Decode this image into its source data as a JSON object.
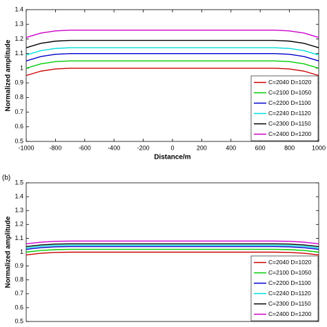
{
  "chart_data": [
    {
      "type": "line",
      "y_label": "Normalized amplitude",
      "x_label": "Distance/m",
      "x": [
        -1000,
        -900,
        -800,
        -700,
        700,
        800,
        900,
        1000
      ],
      "xlim": [
        -1000,
        1000
      ],
      "xticks": [
        -1000,
        -800,
        -600,
        -400,
        -200,
        0,
        200,
        400,
        600,
        800,
        1000
      ],
      "ylim": [
        0.5,
        1.4
      ],
      "yticks": [
        0.5,
        0.6,
        0.7,
        0.8,
        0.9,
        1,
        1.1,
        1.2,
        1.3,
        1.4
      ],
      "legend": "lower right",
      "series": [
        {
          "name": "C=2040 D=1020",
          "color": "#cc0000",
          "values": [
            0.95,
            0.98,
            0.995,
            1,
            1,
            0.995,
            0.98,
            0.95
          ]
        },
        {
          "name": "C=2100 D=1050",
          "color": "#00cc00",
          "values": [
            1,
            1.03,
            1.045,
            1.05,
            1.05,
            1.045,
            1.03,
            1
          ]
        },
        {
          "name": "C=2200 D=1100",
          "color": "#0000cc",
          "values": [
            1.05,
            1.08,
            1.095,
            1.1,
            1.1,
            1.095,
            1.08,
            1.05
          ]
        },
        {
          "name": "C=2240 D=1120",
          "color": "#00dddd",
          "values": [
            1.09,
            1.12,
            1.135,
            1.14,
            1.14,
            1.135,
            1.12,
            1.09
          ]
        },
        {
          "name": "C=2300 D=1150",
          "color": "#000000",
          "values": [
            1.14,
            1.17,
            1.185,
            1.19,
            1.19,
            1.185,
            1.17,
            1.14
          ]
        },
        {
          "name": "C=2400 D=1200",
          "color": "#cc00cc",
          "values": [
            1.21,
            1.24,
            1.255,
            1.26,
            1.26,
            1.255,
            1.24,
            1.21
          ]
        }
      ]
    },
    {
      "type": "line",
      "panel_label": "(b)",
      "y_label": "Normalized amplitude",
      "x": [
        -1000,
        -900,
        -800,
        -700,
        700,
        800,
        900,
        1000
      ],
      "xlim": [
        -1000,
        1000
      ],
      "ylim": [
        0.5,
        1.5
      ],
      "yticks": [
        0.5,
        0.6,
        0.7,
        0.8,
        0.9,
        1,
        1.1,
        1.2,
        1.3,
        1.4,
        1.5
      ],
      "legend": "lower right",
      "series": [
        {
          "name": "C=2040 D=1020",
          "color": "#cc0000",
          "values": [
            0.98,
            0.992,
            0.998,
            1,
            1,
            0.998,
            0.992,
            0.98
          ]
        },
        {
          "name": "C=2100 D=1050",
          "color": "#00cc00",
          "values": [
            1,
            1.012,
            1.018,
            1.02,
            1.02,
            1.018,
            1.012,
            1
          ]
        },
        {
          "name": "C=2200 D=1100",
          "color": "#0000cc",
          "values": [
            1.02,
            1.032,
            1.038,
            1.04,
            1.04,
            1.038,
            1.032,
            1.02
          ]
        },
        {
          "name": "C=2240 D=1120",
          "color": "#00dddd",
          "values": [
            1.03,
            1.042,
            1.048,
            1.05,
            1.05,
            1.048,
            1.042,
            1.03
          ]
        },
        {
          "name": "C=2300 D=1150",
          "color": "#000000",
          "values": [
            1.04,
            1.052,
            1.058,
            1.06,
            1.06,
            1.058,
            1.052,
            1.04
          ]
        },
        {
          "name": "C=2400 D=1200",
          "color": "#cc00cc",
          "values": [
            1.06,
            1.072,
            1.078,
            1.08,
            1.08,
            1.078,
            1.072,
            1.06
          ]
        }
      ]
    }
  ]
}
